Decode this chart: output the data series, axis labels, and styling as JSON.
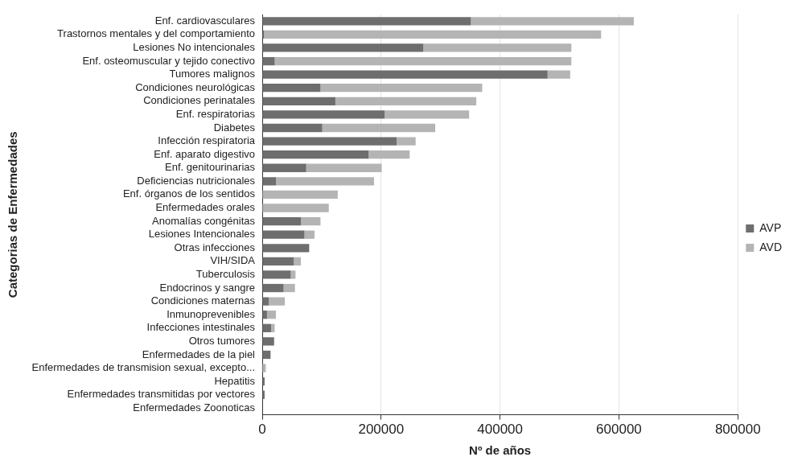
{
  "chart_data": {
    "type": "bar",
    "orientation": "horizontal",
    "stacked": true,
    "xlabel": "Nº de años",
    "ylabel": "Categorias de Enfermedades",
    "categories": [
      "Enf. cardiovasculares",
      "Trastornos mentales y del comportamiento",
      "Lesiones No intencionales",
      "Enf. osteomuscular y tejido conectivo",
      "Tumores malignos",
      "Condiciones neurológicas",
      "Condiciones perinatales",
      "Enf. respiratorias",
      "Diabetes",
      "Infección respiratoria",
      "Enf. aparato digestivo",
      "Enf. genitourinarias",
      "Deficiencias nutricionales",
      "Enf. órganos de los sentidos",
      "Enfermedades orales",
      "Anomalías congénitas",
      "Lesiones Intencionales",
      "Otras infecciones",
      "VIH/SIDA",
      "Tuberculosis",
      "Endocrinos y sangre",
      "Condiciones maternas",
      "Inmunoprevenibles",
      "Infecciones intestinales",
      "Otros tumores",
      "Enfermedades de la piel",
      "Enfermedades de transmision sexual, excepto...",
      "Hepatitis",
      "Enfermedades transmitidas por vectores",
      "Enfermedades Zoonoticas"
    ],
    "series": [
      {
        "name": "AVP",
        "color": "#6e6e6e",
        "values": [
          351000,
          3000,
          271000,
          21000,
          480000,
          98000,
          123000,
          206000,
          101000,
          226000,
          179000,
          74000,
          23000,
          0,
          0,
          65000,
          71000,
          79000,
          53000,
          48000,
          36000,
          11000,
          8000,
          15000,
          20000,
          14000,
          null,
          4000,
          4000,
          null
        ]
      },
      {
        "name": "AVD",
        "color": "#b4b4b4",
        "values": [
          274000,
          567000,
          249000,
          499000,
          38000,
          272000,
          237000,
          142000,
          190000,
          32000,
          69000,
          127000,
          165000,
          127000,
          112000,
          33000,
          17000,
          0,
          12000,
          8000,
          19000,
          27000,
          15000,
          6000,
          0,
          0,
          6000,
          0,
          0,
          0
        ]
      }
    ],
    "xlim": [
      0,
      800000
    ],
    "xticks": [
      0,
      200000,
      400000,
      600000,
      800000
    ],
    "grid": "x",
    "legend": "right"
  }
}
